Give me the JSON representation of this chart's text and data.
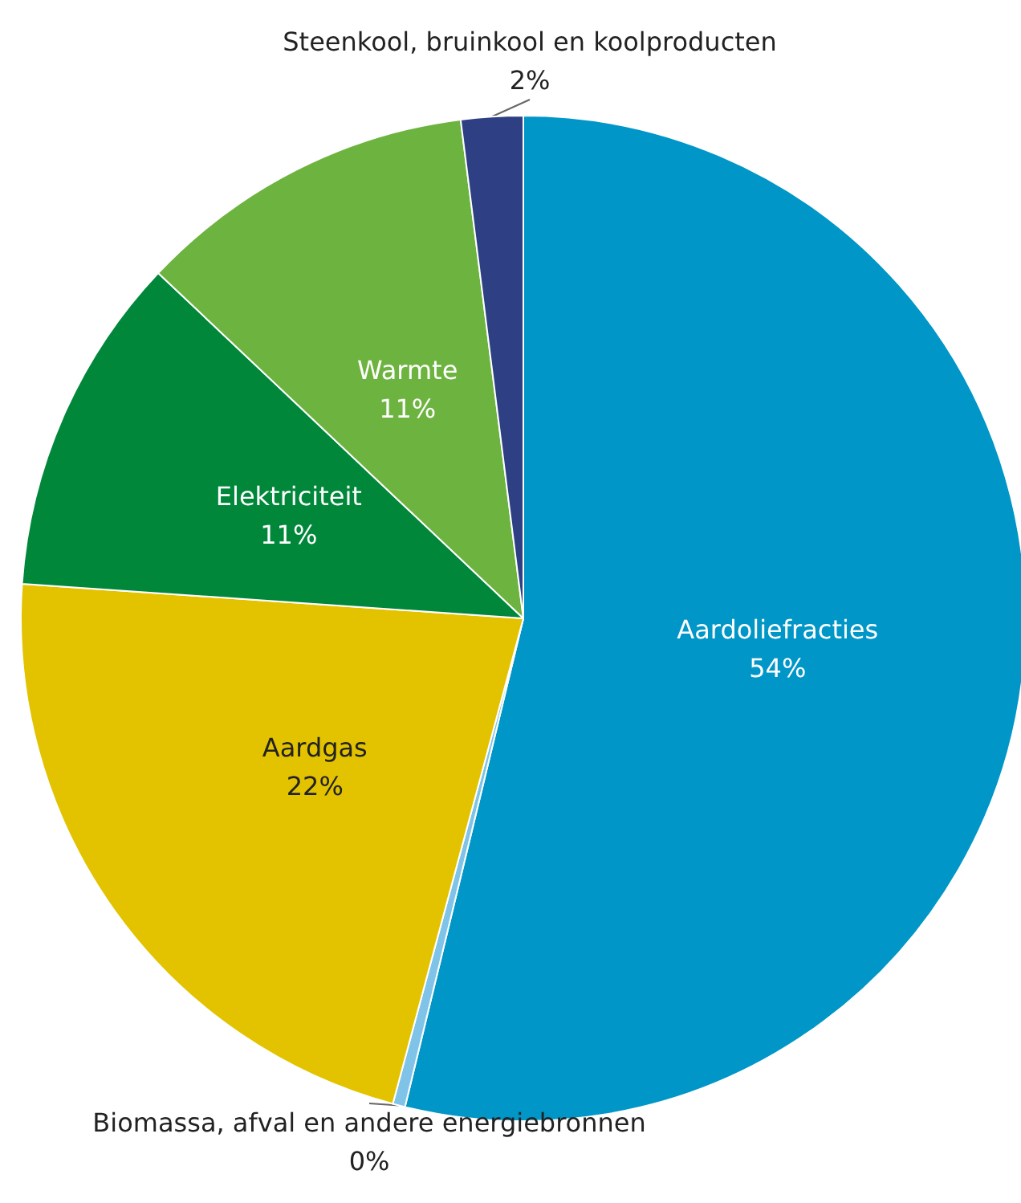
{
  "chart_data": {
    "type": "pie",
    "categories": [
      "Aardoliefracties",
      "Biomassa, afval en andere energiebronnen",
      "Aardgas",
      "Elektriciteit",
      "Warmte",
      "Steenkool, bruinkool en koolproducten"
    ],
    "values": [
      54,
      0.4,
      22,
      11,
      11,
      2
    ],
    "value_labels": [
      "54%",
      "0%",
      "22%",
      "11%",
      "11%",
      "2%"
    ],
    "colors": [
      "#0096c8",
      "#7fc4e8",
      "#e3c300",
      "#00873a",
      "#6db33f",
      "#2e3f84"
    ]
  }
}
